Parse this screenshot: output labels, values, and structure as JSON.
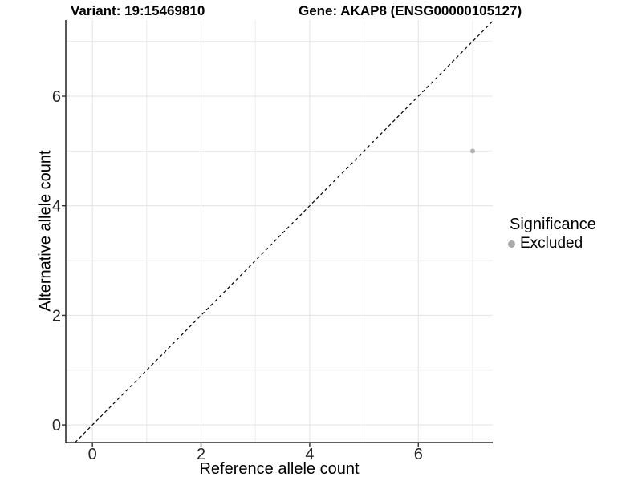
{
  "chart_data": {
    "type": "scatter",
    "title_left": "Variant: 19:15469810",
    "title_right": "Gene: AKAP8 (ENSG00000105127)",
    "xlabel": "Reference allele count",
    "ylabel": "Alternative allele count",
    "xlim": [
      -0.49,
      7.37
    ],
    "ylim": [
      -0.32,
      7.39
    ],
    "x_ticks": [
      0,
      2,
      4,
      6
    ],
    "y_ticks": [
      0,
      2,
      4,
      6
    ],
    "x_minor": [
      1,
      3,
      5,
      7
    ],
    "y_minor": [
      1,
      3,
      5,
      7
    ],
    "grid": true,
    "points": [
      {
        "x": 7,
        "y": 5,
        "series": "Excluded"
      }
    ],
    "reference_line": {
      "type": "identity",
      "slope": 1,
      "intercept": 0,
      "style": "dashed"
    },
    "legend": {
      "title": "Significance",
      "position": "right",
      "items": [
        {
          "label": "Excluded",
          "color": "#aaaaaa"
        }
      ]
    },
    "colors": {
      "point": "#b3b3b3",
      "grid_major": "#e2e2e2",
      "grid_minor": "#ececec",
      "axis": "#2e2e2e",
      "dashed_line": "#000000",
      "background": "#ffffff"
    }
  }
}
